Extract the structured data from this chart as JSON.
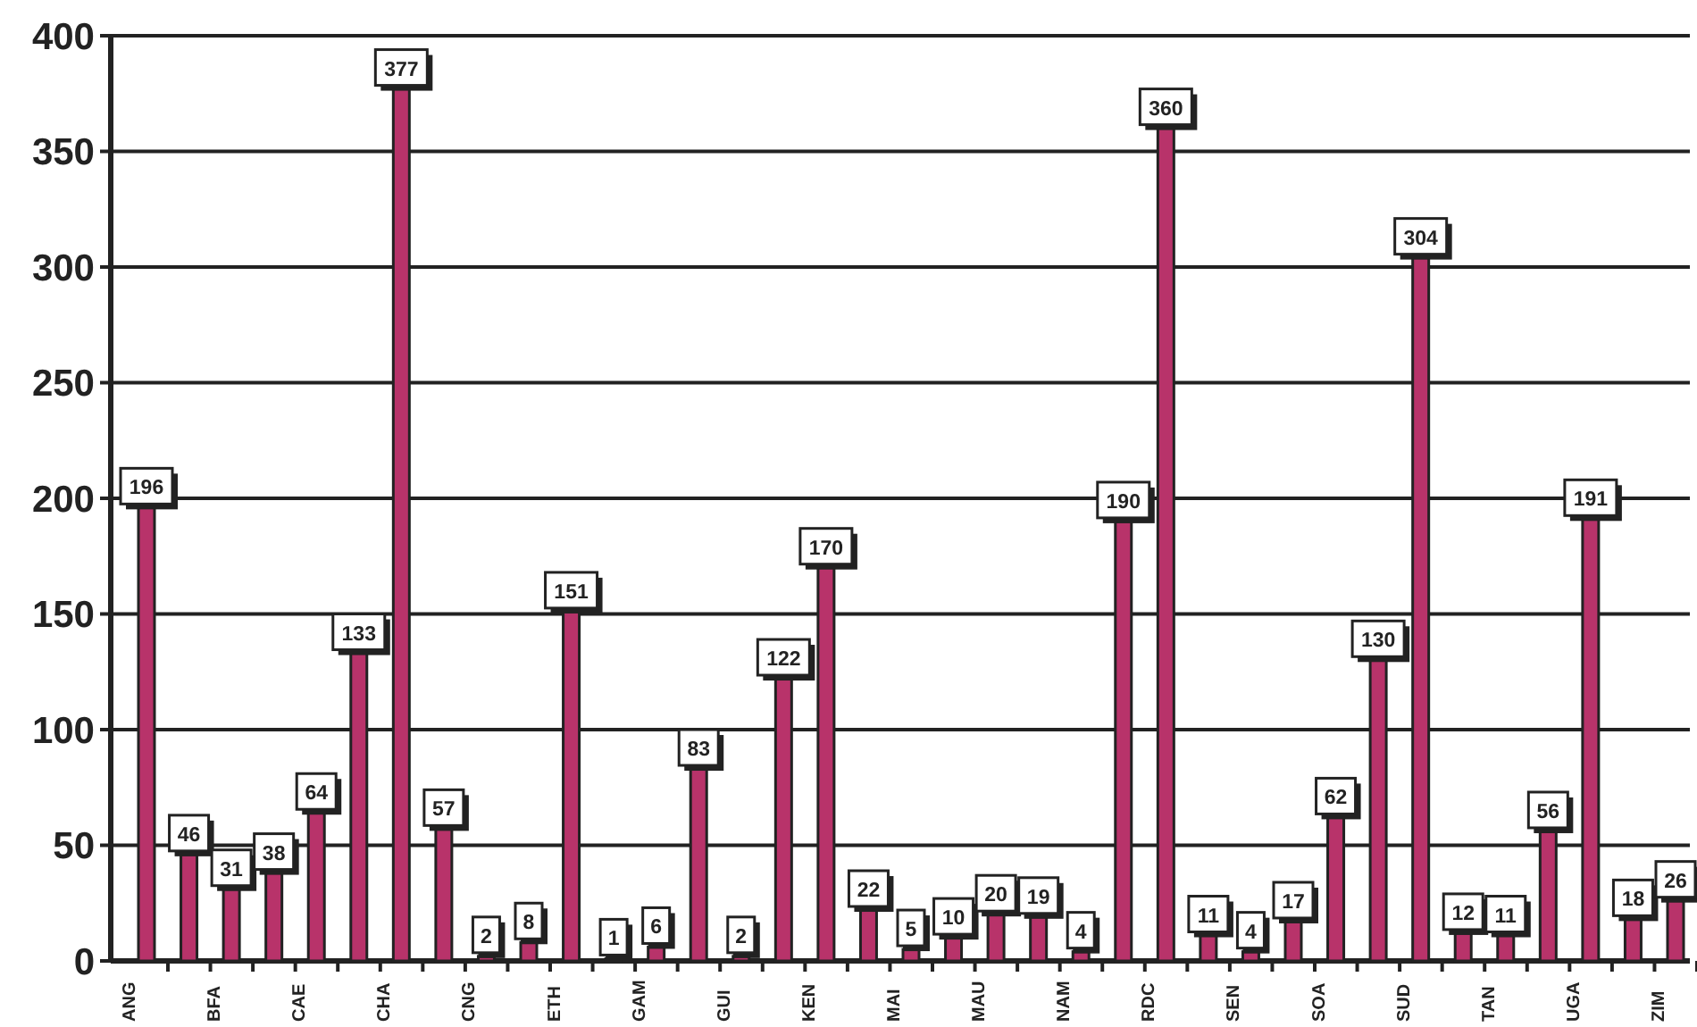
{
  "chart_data": {
    "type": "bar",
    "categories": [
      "ANG",
      null,
      "BFA",
      null,
      "CAE",
      null,
      "CHA",
      null,
      "CNG",
      null,
      "ETH",
      null,
      "GAM",
      null,
      "GUI",
      null,
      "KEN",
      null,
      "MAI",
      null,
      "MAU",
      null,
      "NAM",
      null,
      "RDC",
      null,
      "SEN",
      null,
      "SOA",
      null,
      "SUD",
      null,
      "TAN",
      null,
      "UGA",
      null,
      "ZIM"
    ],
    "values": [
      196,
      46,
      31,
      38,
      64,
      133,
      377,
      57,
      2,
      8,
      151,
      1,
      6,
      83,
      2,
      122,
      170,
      22,
      5,
      10,
      20,
      19,
      4,
      190,
      360,
      11,
      4,
      17,
      62,
      130,
      304,
      12,
      11,
      56,
      191,
      18,
      26
    ],
    "color": "#b8336a",
    "ylim": [
      0,
      400
    ],
    "yticks": [
      0,
      50,
      100,
      150,
      200,
      250,
      300,
      350,
      400
    ],
    "grid": "y",
    "data_labels": true
  }
}
